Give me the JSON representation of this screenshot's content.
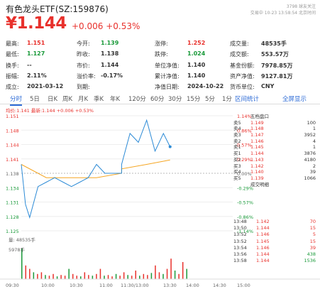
{
  "header": {
    "title": "有色龙头ETF(SZ:159876)",
    "price": "¥1.144",
    "change": "+0.006 +0.53%",
    "meta_line1": "3798 球友关注",
    "meta_line2": "交易中 10-23 13:58:54 北京时间"
  },
  "quotes": [
    [
      [
        "最高:",
        "1.151",
        "red"
      ],
      [
        "今开:",
        "1.139",
        "green"
      ],
      [
        "涨停:",
        "1.252",
        "red"
      ],
      [
        "成交量:",
        "48535手",
        ""
      ]
    ],
    [
      [
        "最低:",
        "1.127",
        "green"
      ],
      [
        "昨收:",
        "1.138",
        ""
      ],
      [
        "跌停:",
        "1.024",
        "green"
      ],
      [
        "成交额:",
        "553.57万",
        ""
      ]
    ],
    [
      [
        "换手:",
        "--",
        ""
      ],
      [
        "市价:",
        "1.144",
        ""
      ],
      [
        "单位净值:",
        "1.140",
        ""
      ],
      [
        "基金份额:",
        "7978.85万",
        ""
      ]
    ],
    [
      [
        "振幅:",
        "2.11%",
        ""
      ],
      [
        "溢价率:",
        "-0.17%",
        ""
      ],
      [
        "累计净值:",
        "1.140",
        ""
      ],
      [
        "资产净值:",
        "9127.81万",
        ""
      ]
    ],
    [
      [
        "成立:",
        "2021-03-12",
        ""
      ],
      [
        "到期:",
        "",
        ""
      ],
      [
        "净值日期:",
        "2024-10-22",
        ""
      ],
      [
        "货币单位:",
        "CNY",
        ""
      ]
    ]
  ],
  "tabs": [
    "分时",
    "5日",
    "日K",
    "周K",
    "月K",
    "季K",
    "年K",
    "120分",
    "60分",
    "30分",
    "15分",
    "5分",
    "1分"
  ],
  "links": {
    "history": "区间统计",
    "fullscreen": "全屏显示"
  },
  "chart": {
    "legend": "均价:1.141  最新:1.144 +0.006 +0.53%",
    "y_left": [
      "1.151",
      "1.148",
      "1.144",
      "1.141",
      "1.138",
      "1.134",
      "1.131",
      "1.128",
      "1.125"
    ],
    "y_right": [
      "1.14%",
      "0.86%",
      "0.57%",
      "0.29%",
      "0.00%",
      "-0.29%",
      "-0.57%",
      "-0.86%",
      "-1.14%"
    ],
    "x_labels": [
      "09:30",
      "10:00",
      "10:30",
      "11:00",
      "11:30/13:00",
      "13:30",
      "14:00",
      "14:30",
      "15:00"
    ],
    "vol_label": "量: 48535手",
    "vol_max": "5978手"
  },
  "chart_data": {
    "type": "line",
    "series": [
      {
        "name": "最新",
        "x": [
          "09:30",
          "09:35",
          "09:40",
          "09:50",
          "10:00",
          "10:10",
          "10:20",
          "10:30",
          "10:40",
          "10:50",
          "11:00",
          "11:10",
          "11:20",
          "11:30",
          "13:00",
          "13:10",
          "13:20",
          "13:30",
          "13:40",
          "13:50",
          "13:58"
        ],
        "values": [
          1.14,
          1.131,
          1.128,
          1.135,
          1.136,
          1.137,
          1.136,
          1.135,
          1.136,
          1.137,
          1.14,
          1.138,
          1.138,
          1.138,
          1.14,
          1.147,
          1.145,
          1.15,
          1.143,
          1.147,
          1.144
        ]
      },
      {
        "name": "均价",
        "x": [
          "09:30",
          "10:00",
          "10:30",
          "11:00",
          "11:30",
          "13:00",
          "13:30",
          "13:58"
        ],
        "values": [
          1.14,
          1.137,
          1.137,
          1.137,
          1.138,
          1.139,
          1.14,
          1.141
        ]
      }
    ],
    "ylim": [
      1.125,
      1.151
    ]
  },
  "orderbook": {
    "title": "五档盘口",
    "asks": [
      [
        "卖5",
        "1.149",
        "100"
      ],
      [
        "卖4",
        "1.148",
        "1"
      ],
      [
        "卖3",
        "1.147",
        "3952"
      ],
      [
        "卖2",
        "1.146",
        "4"
      ],
      [
        "卖1",
        "1.145",
        "1"
      ]
    ],
    "bids": [
      [
        "买1",
        "1.144",
        "3876"
      ],
      [
        "买2",
        "1.143",
        "4180"
      ],
      [
        "买3",
        "1.142",
        "2"
      ],
      [
        "买4",
        "1.140",
        "39"
      ],
      [
        "买5",
        "1.139",
        "1066"
      ]
    ]
  },
  "trades": {
    "title": "成交明细",
    "items": [
      [
        "13:48",
        "1.142",
        "70"
      ],
      [
        "13:50",
        "1.144",
        "15"
      ],
      [
        "13:52",
        "1.146",
        "5"
      ],
      [
        "13:52",
        "1.145",
        "15"
      ],
      [
        "13:54",
        "1.146",
        "39"
      ],
      [
        "13:56",
        "1.144",
        "438"
      ],
      [
        "13:58",
        "1.144",
        "1536"
      ]
    ]
  }
}
